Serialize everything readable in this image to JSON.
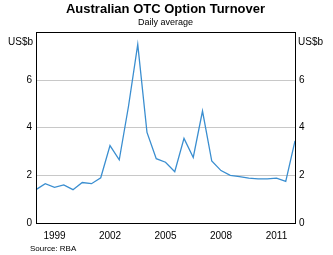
{
  "chart_data": {
    "type": "line",
    "title": "Australian OTC Option Turnover",
    "subtitle": "Daily average",
    "y_label": "US$b",
    "y2_label": "US$b",
    "source": "Source: RBA",
    "categories": [
      null,
      null,
      "1999",
      null,
      null,
      null,
      null,
      null,
      "2002",
      null,
      null,
      null,
      null,
      null,
      "2005",
      null,
      null,
      null,
      null,
      null,
      "2008",
      null,
      null,
      null,
      null,
      null,
      "2011",
      null,
      null
    ],
    "values": [
      1.4,
      1.65,
      1.5,
      1.6,
      1.4,
      1.7,
      1.65,
      1.9,
      3.25,
      2.65,
      4.9,
      7.5,
      3.8,
      2.7,
      2.55,
      2.15,
      3.55,
      2.75,
      4.7,
      2.6,
      2.2,
      2.0,
      1.95,
      1.88,
      1.85,
      1.85,
      1.88,
      1.75,
      3.45
    ],
    "color": "#3a8ed0",
    "ylim": [
      0,
      8
    ],
    "yticks": [
      0,
      2,
      4,
      6
    ],
    "y2lim": [
      0,
      8
    ],
    "y2ticks": [
      0,
      2,
      4,
      6
    ],
    "grid": true
  }
}
